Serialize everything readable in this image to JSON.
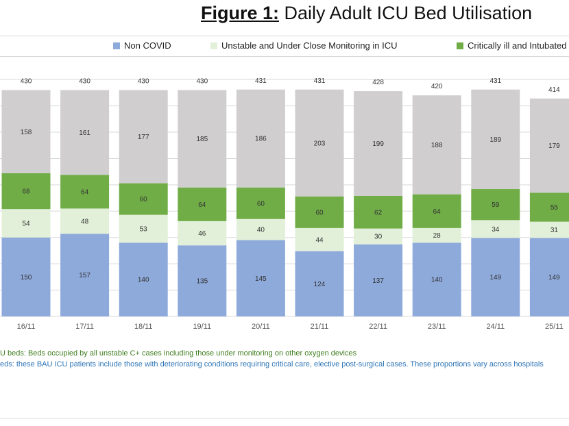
{
  "title": {
    "prefix": "Figure 1:",
    "text": " Daily Adult ICU Bed Utilisation"
  },
  "legend": [
    {
      "label": "Non COVID",
      "color": "#8eaadb"
    },
    {
      "label": "Unstable and Under Close Monitoring in ICU",
      "color": "#e2f0d9"
    },
    {
      "label": "Critically ill and Intubated",
      "color": "#70ad47"
    }
  ],
  "notes": {
    "line1": "U beds: Beds occupied by all unstable C+ cases including those under monitoring on other oxygen devices",
    "line2": "eds: these BAU ICU patients include those with deteriorating conditions requiring critical care, elective post-surgical cases. These proportions vary across hospitals"
  },
  "chart_data": {
    "type": "bar",
    "stacked": true,
    "categories": [
      "16/11",
      "17/11",
      "18/11",
      "19/11",
      "20/11",
      "21/11",
      "22/11",
      "23/11",
      "24/11",
      "25/11"
    ],
    "series": [
      {
        "name": "Non COVID",
        "color": "#8eaadb",
        "values": [
          150,
          157,
          140,
          135,
          145,
          124,
          137,
          140,
          149,
          149
        ]
      },
      {
        "name": "Unstable and Under Close Monitoring in ICU",
        "color": "#e2f0d9",
        "values": [
          54,
          48,
          53,
          46,
          40,
          44,
          30,
          28,
          34,
          31
        ]
      },
      {
        "name": "Critically ill and Intubated",
        "color": "#70ad47",
        "values": [
          68,
          64,
          60,
          64,
          60,
          60,
          62,
          64,
          59,
          55
        ]
      },
      {
        "color": "#d0cece",
        "values": [
          158,
          161,
          177,
          185,
          186,
          203,
          199,
          188,
          189,
          179
        ]
      }
    ],
    "totals": [
      430,
      430,
      430,
      430,
      431,
      431,
      428,
      420,
      431,
      414
    ],
    "ylim": [
      0,
      450
    ],
    "grid": true,
    "legend_position": "top"
  }
}
